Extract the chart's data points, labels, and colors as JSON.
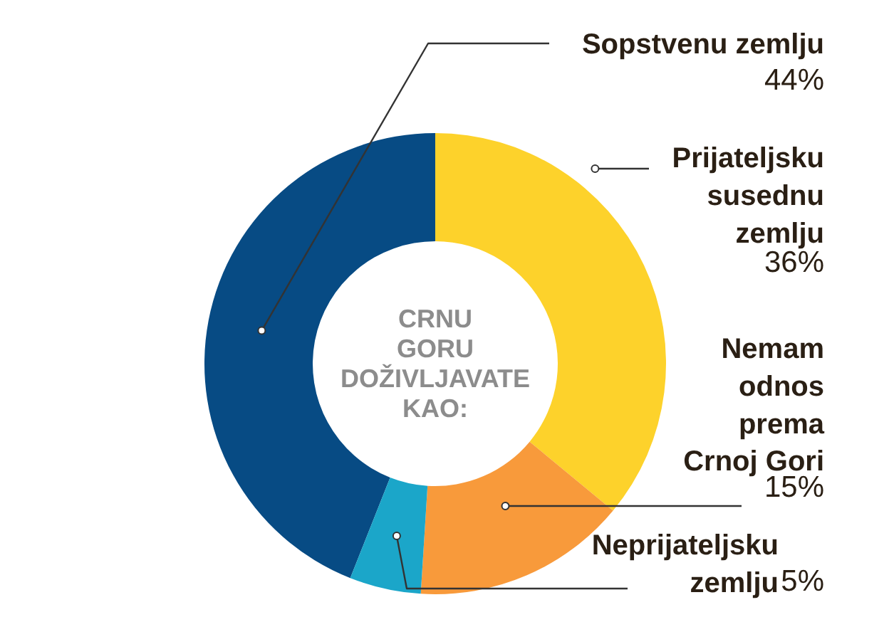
{
  "chart_data": {
    "type": "donut",
    "title": "CRNU GORU DOŽIVLJAVATE KAO:",
    "categories": [
      "Sopstvenu zemlju",
      "Prijateljsku susednu zemlju",
      "Nemam odnos prema Crnoj Gori",
      "Neprijateljsku zemlju"
    ],
    "values": [
      44,
      36,
      15,
      5
    ],
    "colors": [
      "#074b84",
      "#fdd22b",
      "#f89a3b",
      "#1ba6c9"
    ],
    "value_labels": [
      "44%",
      "36%",
      "15%",
      "5%"
    ]
  }
}
